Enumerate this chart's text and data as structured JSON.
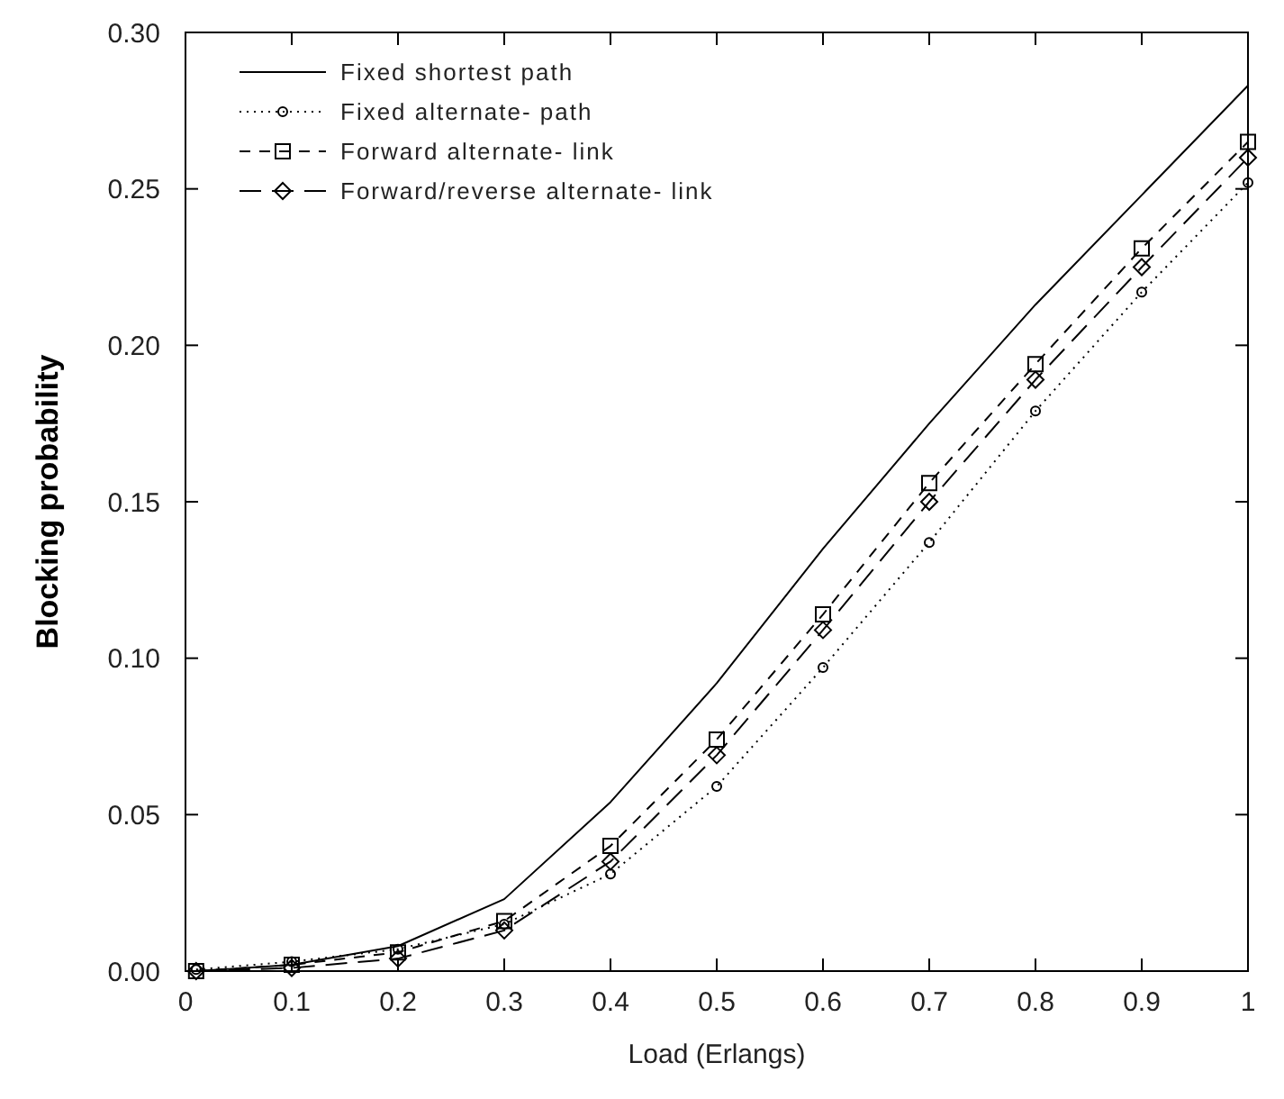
{
  "chart_data": {
    "type": "line",
    "xlabel": "Load (Erlangs)",
    "ylabel": "Blocking probability",
    "x": [
      0.01,
      0.1,
      0.2,
      0.3,
      0.4,
      0.5,
      0.6,
      0.7,
      0.8,
      0.9,
      1
    ],
    "xlim": [
      0,
      1
    ],
    "xticks": [
      0,
      0.1,
      0.2,
      0.3,
      0.4,
      0.5,
      0.6,
      0.7,
      0.8,
      0.9,
      1
    ],
    "ylim": [
      0,
      0.3
    ],
    "yticks": [
      {
        "value": 0,
        "label": "0.00"
      },
      {
        "value": 0.05,
        "label": "0.05"
      },
      {
        "value": 0.1,
        "label": "0.10"
      },
      {
        "value": 0.15,
        "label": "0.15"
      },
      {
        "value": 0.2,
        "label": "0.20"
      },
      {
        "value": 0.25,
        "label": "0.25"
      },
      {
        "value": 0.3,
        "label": "0.30"
      }
    ],
    "grid": false,
    "legend": "top left",
    "series": [
      {
        "name": "Fixed shortest path",
        "color": "#000000",
        "marker": "none",
        "line_style": "solid",
        "values": [
          0,
          0.002,
          0.008,
          0.023,
          0.054,
          0.092,
          0.135,
          0.175,
          0.213,
          0.248,
          0.283
        ]
      },
      {
        "name": "Fixed alternate- path",
        "color": "#000000",
        "marker": "circle",
        "line_style": "dotted",
        "values": [
          0.0005,
          0.003,
          0.007,
          0.015,
          0.031,
          0.059,
          0.097,
          0.137,
          0.179,
          0.217,
          0.252
        ]
      },
      {
        "name": "Forward alternate- link",
        "color": "#000000",
        "marker": "square",
        "line_style": "dashed",
        "values": [
          0,
          0.002,
          0.006,
          0.016,
          0.04,
          0.074,
          0.114,
          0.156,
          0.194,
          0.231,
          0.265
        ]
      },
      {
        "name": "Forward/reverse alternate- link",
        "color": "#000000",
        "marker": "diamond",
        "line_style": "longdash",
        "values": [
          0,
          0.001,
          0.004,
          0.013,
          0.035,
          0.069,
          0.109,
          0.15,
          0.189,
          0.225,
          0.26
        ]
      }
    ]
  }
}
